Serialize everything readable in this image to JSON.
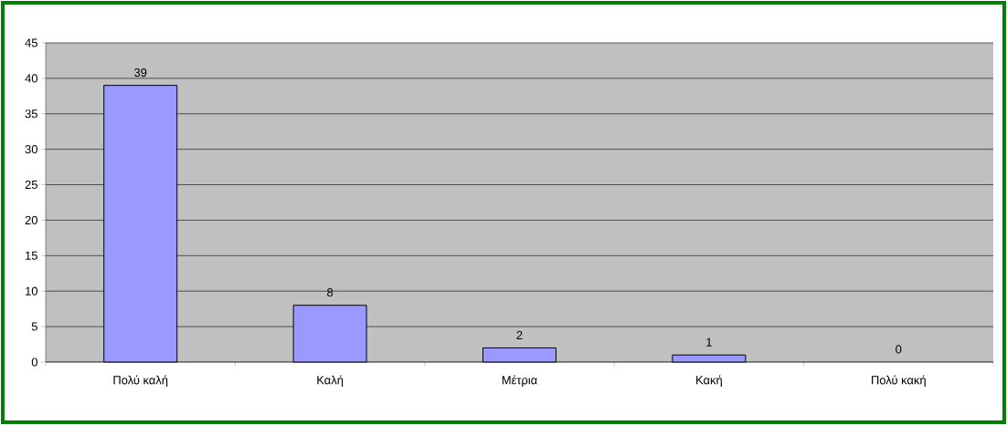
{
  "chart_data": {
    "type": "bar",
    "categories": [
      "Πολύ καλή",
      "Καλή",
      "Μέτρια",
      "Κακή",
      "Πολύ κακή"
    ],
    "values": [
      39,
      8,
      2,
      1,
      0
    ],
    "color": "#9999ff",
    "ylim": [
      0,
      45
    ],
    "yticks": [
      0,
      5,
      10,
      15,
      20,
      25,
      30,
      35,
      40,
      45
    ],
    "grid": "y",
    "data_labels": true
  }
}
